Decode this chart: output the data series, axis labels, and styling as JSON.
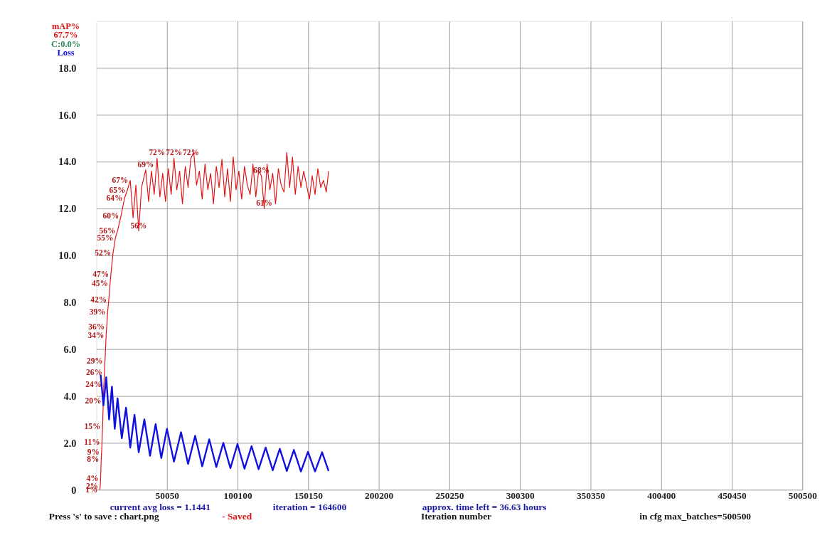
{
  "chart_data": {
    "type": "line",
    "xlabel": "Iteration number",
    "xlim": [
      0,
      500500
    ],
    "xticks": [
      50050,
      100100,
      150150,
      200200,
      250250,
      300300,
      350350,
      400400,
      450450,
      500500
    ],
    "ylim": [
      0,
      20
    ],
    "yticks": [
      0,
      {
        "value": 2,
        "label": "2.0"
      },
      {
        "value": 4,
        "label": "4.0"
      },
      {
        "value": 6,
        "label": "6.0"
      },
      {
        "value": 8,
        "label": "8.0"
      },
      {
        "value": 10,
        "label": "10.0"
      },
      {
        "value": 12,
        "label": "12.0"
      },
      {
        "value": 14,
        "label": "14.0"
      },
      {
        "value": 16,
        "label": "16.0"
      },
      {
        "value": 18,
        "label": "18.0"
      }
    ],
    "grid": true,
    "legend": "top left",
    "marker": "none",
    "line_style": "solid",
    "series": [
      {
        "name": "mAP%",
        "color": "#e01010",
        "x": [
          2400,
          2700,
          3000,
          3400,
          3700,
          4000,
          4400,
          4900,
          5300,
          5700,
          6100,
          6900,
          7300,
          8000,
          8800,
          9700,
          10300,
          11800,
          13500,
          15000,
          17500,
          20000,
          22000,
          24000,
          26000,
          28000,
          30000,
          32000,
          35000,
          37000,
          39000,
          41000,
          43000,
          45000,
          47000,
          49000,
          51000,
          53000,
          55000,
          57000,
          59000,
          61000,
          63000,
          65000,
          67000,
          69000,
          71000,
          73000,
          75000,
          77000,
          79000,
          81000,
          83000,
          85000,
          87000,
          89000,
          91000,
          93000,
          95000,
          97000,
          99000,
          101000,
          103000,
          105000,
          107000,
          109000,
          111000,
          113000,
          115000,
          117000,
          119000,
          121000,
          123000,
          125000,
          127000,
          129000,
          131000,
          133000,
          135000,
          137000,
          139000,
          141000,
          143000,
          145000,
          147000,
          149000,
          151000,
          153000,
          155000,
          157000,
          159000,
          161000,
          163000,
          164600
        ],
        "values": [
          0,
          0.15,
          0.5,
          1.3,
          1.62,
          2.05,
          2.7,
          3.8,
          4.5,
          5.0,
          5.5,
          6.6,
          6.95,
          7.6,
          8.1,
          8.8,
          9.2,
          10.1,
          10.75,
          11.05,
          11.7,
          12.45,
          12.8,
          13.2,
          11.6,
          13.0,
          11.05,
          12.9,
          13.65,
          12.3,
          13.6,
          12.6,
          14.15,
          12.5,
          13.5,
          12.3,
          13.7,
          12.6,
          14.15,
          12.8,
          13.6,
          12.2,
          13.8,
          12.9,
          14.15,
          14.4,
          13.0,
          13.6,
          12.4,
          13.9,
          12.8,
          13.5,
          12.2,
          13.8,
          12.9,
          14.1,
          12.5,
          13.7,
          12.3,
          14.2,
          12.8,
          13.6,
          12.4,
          13.8,
          13.0,
          12.6,
          13.9,
          12.5,
          13.6,
          13.4,
          12.0,
          13.9,
          12.8,
          13.5,
          12.2,
          13.7,
          13.0,
          12.7,
          14.4,
          12.9,
          14.2,
          12.6,
          13.8,
          12.9,
          13.6,
          13.0,
          12.4,
          13.4,
          12.6,
          13.7,
          12.9,
          13.2,
          12.7,
          13.6
        ]
      },
      {
        "name": "Loss",
        "color": "#1010e0",
        "x": [
          3000,
          5000,
          7000,
          9000,
          11000,
          13000,
          15000,
          18000,
          21000,
          24000,
          27000,
          30000,
          34000,
          38000,
          42000,
          46000,
          50000,
          55000,
          60000,
          65000,
          70000,
          75000,
          80000,
          85000,
          90000,
          95000,
          100000,
          105000,
          110000,
          115000,
          120000,
          125000,
          130000,
          135000,
          140000,
          145000,
          150000,
          155000,
          160000,
          164600
        ],
        "values": [
          4.9,
          3.6,
          4.8,
          3.0,
          4.4,
          2.6,
          3.9,
          2.2,
          3.5,
          1.8,
          3.2,
          1.6,
          3.0,
          1.45,
          2.8,
          1.35,
          2.6,
          1.2,
          2.45,
          1.1,
          2.3,
          1.0,
          2.15,
          0.97,
          2.0,
          0.92,
          1.95,
          0.9,
          1.86,
          0.88,
          1.8,
          0.83,
          1.75,
          0.8,
          1.7,
          0.78,
          1.62,
          0.78,
          1.6,
          0.8
        ]
      }
    ],
    "annotations": [
      "67.7%",
      "C:0.0%",
      "current avg loss = 1.1441",
      "iteration = 164600",
      "approx. time left = 36.63 hours",
      "Press 's' to save : chart.png",
      "- Saved",
      "in cfg max_batches=500500",
      {
        "text": "1%",
        "x": 2400,
        "y": 0
      },
      {
        "text": "2%",
        "x": 2700,
        "y": 0.15
      },
      {
        "text": "4%",
        "x": 3000,
        "y": 0.5
      },
      {
        "text": "8%",
        "x": 3400,
        "y": 1.3
      },
      {
        "text": "9%",
        "x": 3700,
        "y": 1.62
      },
      {
        "text": "11%",
        "x": 4000,
        "y": 2.05
      },
      {
        "text": "15%",
        "x": 4400,
        "y": 2.7
      },
      {
        "text": "20%",
        "x": 4900,
        "y": 3.8
      },
      {
        "text": "24%",
        "x": 5300,
        "y": 4.5
      },
      {
        "text": "26%",
        "x": 5700,
        "y": 5.0
      },
      {
        "text": "29%",
        "x": 6100,
        "y": 5.5
      },
      {
        "text": "34%",
        "x": 6900,
        "y": 6.6
      },
      {
        "text": "36%",
        "x": 7300,
        "y": 6.95
      },
      {
        "text": "39%",
        "x": 8000,
        "y": 7.6
      },
      {
        "text": "42%",
        "x": 8800,
        "y": 8.1
      },
      {
        "text": "45%",
        "x": 9700,
        "y": 8.8
      },
      {
        "text": "47%",
        "x": 10300,
        "y": 9.2
      },
      {
        "text": "52%",
        "x": 11800,
        "y": 10.1
      },
      {
        "text": "55%",
        "x": 13500,
        "y": 10.75
      },
      {
        "text": "56%",
        "x": 15000,
        "y": 11.05
      },
      {
        "text": "56%",
        "x": 30000,
        "y": 11.05
      },
      {
        "text": "60%",
        "x": 17500,
        "y": 11.7
      },
      {
        "text": "64%",
        "x": 20000,
        "y": 12.45
      },
      {
        "text": "65%",
        "x": 22000,
        "y": 12.8
      },
      {
        "text": "67%",
        "x": 24000,
        "y": 13.2
      },
      {
        "text": "69%",
        "x": 35000,
        "y": 13.65
      },
      {
        "text": "72%",
        "x": 43000,
        "y": 14.15
      },
      {
        "text": "72%",
        "x": 55000,
        "y": 14.15
      },
      {
        "text": "72%",
        "x": 67000,
        "y": 14.15
      },
      {
        "text": "68%",
        "x": 117000,
        "y": 13.4
      },
      {
        "text": "61%",
        "x": 119000,
        "y": 12.0
      }
    ]
  }
}
